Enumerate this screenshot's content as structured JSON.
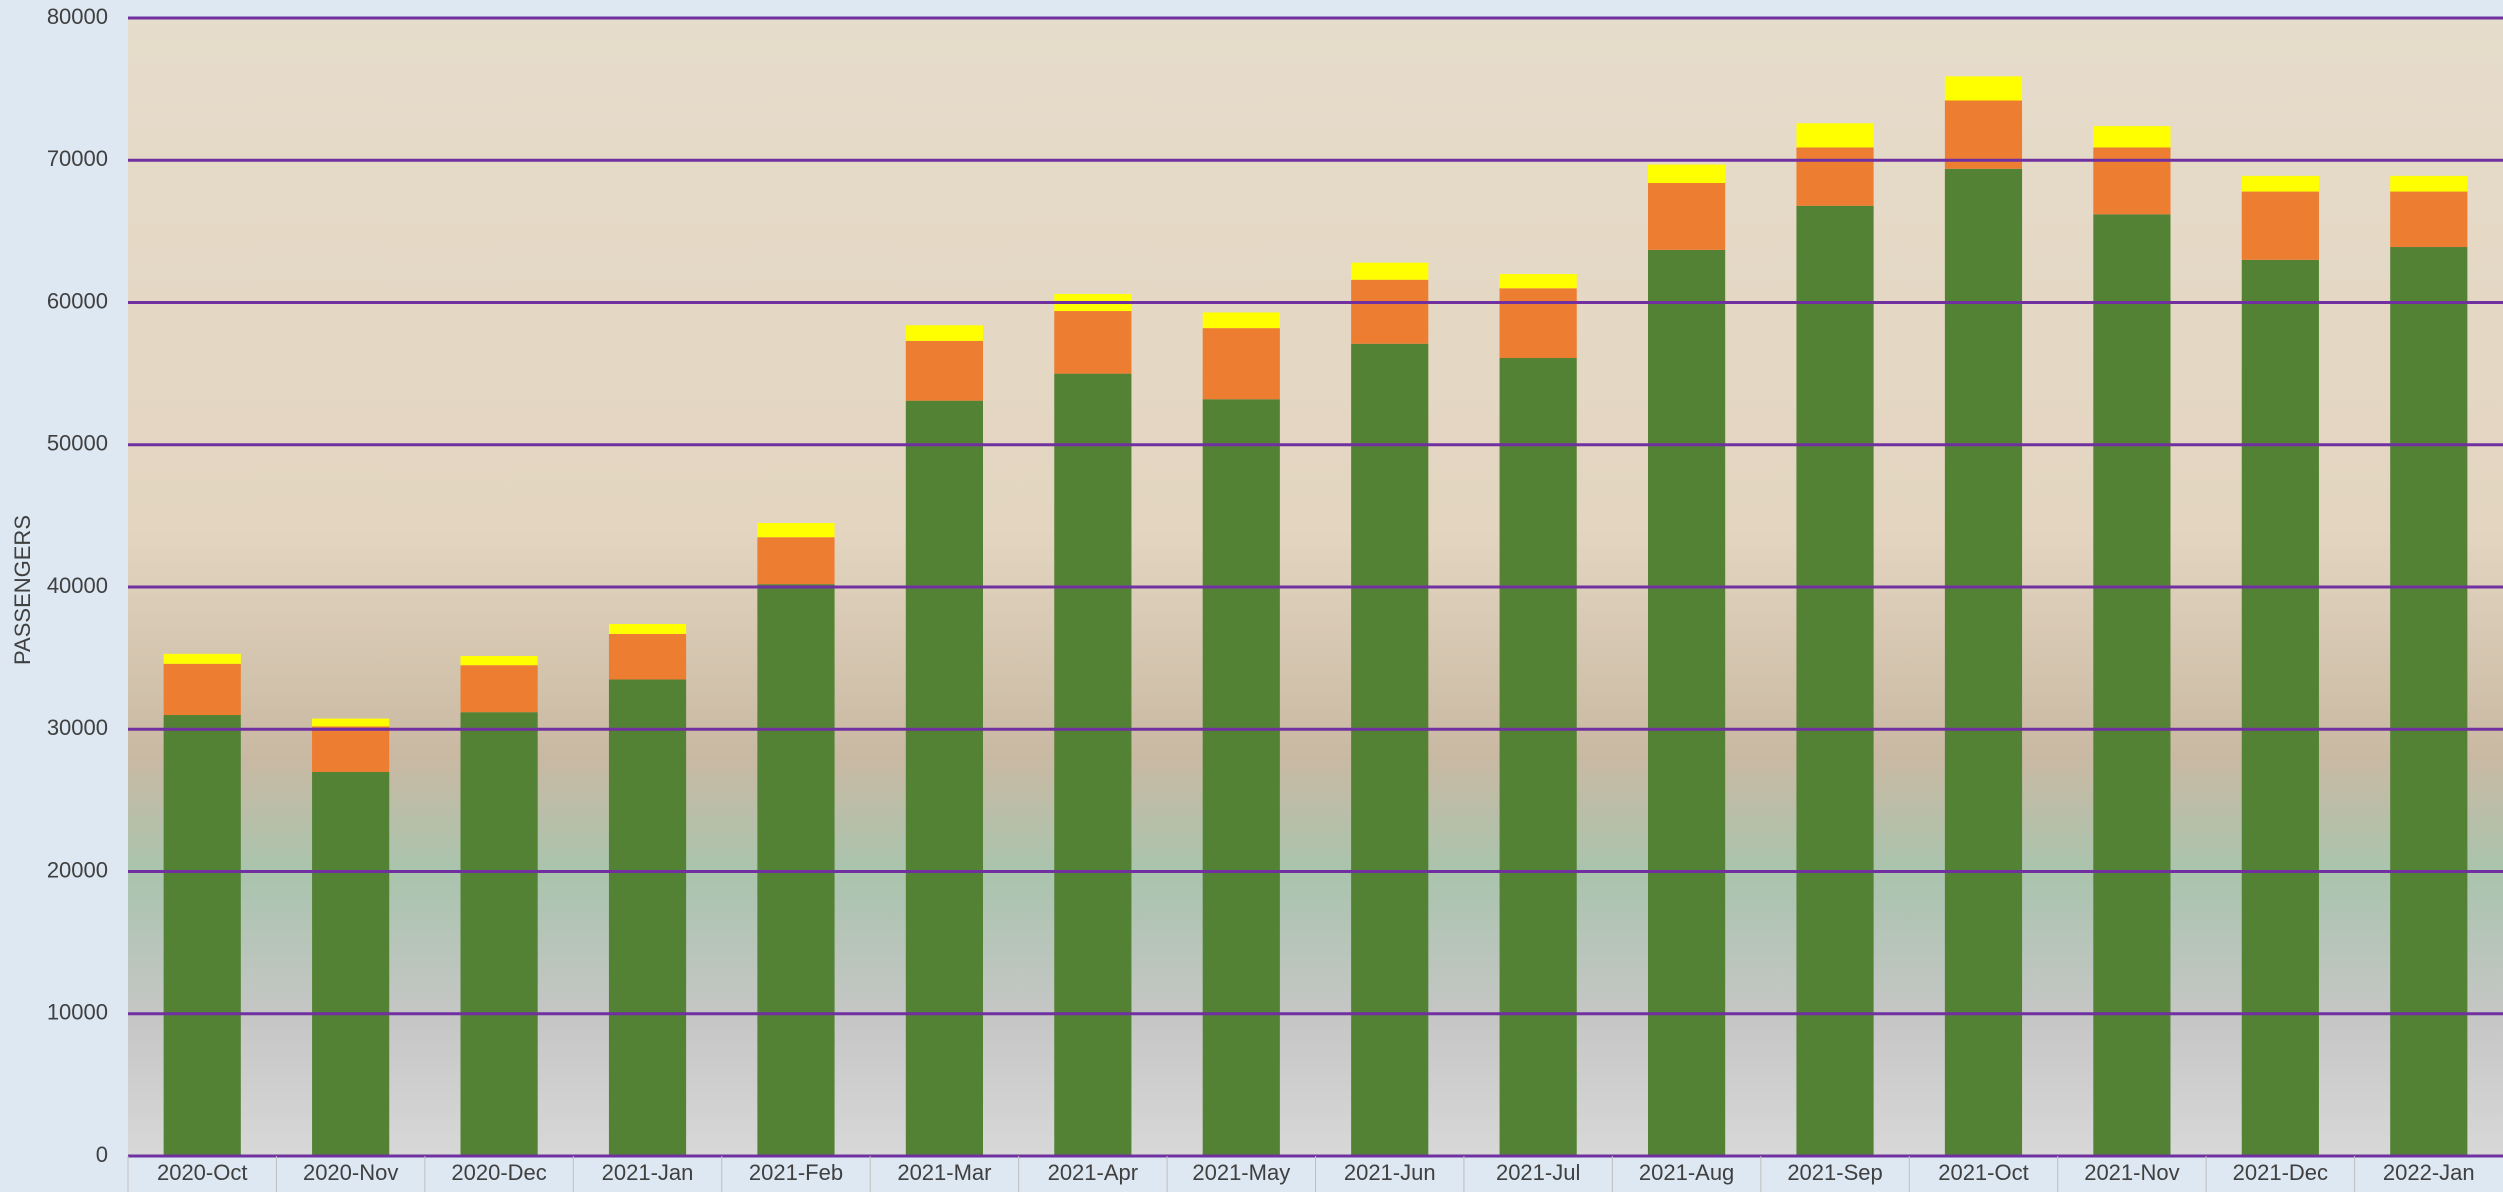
{
  "chart_data": {
    "type": "stacked_bar",
    "y_label": "PASSENGERS",
    "categories": [
      "2020-Oct",
      "2020-Nov",
      "2020-Dec",
      "2021-Jan",
      "2021-Feb",
      "2021-Mar",
      "2021-Apr",
      "2021-May",
      "2021-Jun",
      "2021-Jul",
      "2021-Aug",
      "2021-Sep",
      "2021-Oct",
      "2021-Nov",
      "2021-Dec",
      "2022-Jan"
    ],
    "series": [
      {
        "color": "#548235",
        "values": [
          31000,
          27000,
          31200,
          33500,
          40200,
          53100,
          55000,
          53200,
          57100,
          56100,
          63700,
          66800,
          69400,
          66200,
          63000,
          63900
        ]
      },
      {
        "color": "#ed7d31",
        "values": [
          3600,
          3200,
          3300,
          3200,
          3300,
          4200,
          4400,
          5000,
          4500,
          4900,
          4700,
          4100,
          4800,
          4700,
          4800,
          3900
        ]
      },
      {
        "color": "#ffff00",
        "values": [
          700,
          550,
          650,
          700,
          1000,
          1100,
          1200,
          1100,
          1200,
          1000,
          1300,
          1700,
          1700,
          1500,
          1100,
          1100
        ]
      }
    ],
    "ylim": [
      0,
      80000
    ],
    "yticks": [
      0,
      10000,
      20000,
      30000,
      40000,
      50000,
      60000,
      70000,
      80000
    ],
    "grid": true,
    "grid_color": "#7030a0"
  }
}
